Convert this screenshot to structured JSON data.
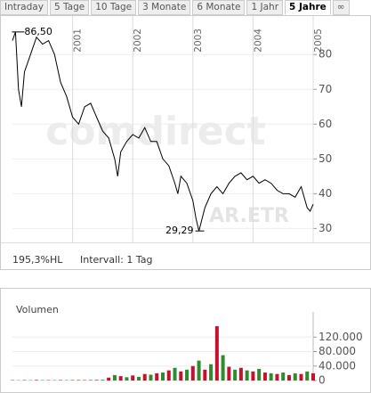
{
  "tabs": [
    "Intraday",
    "5 Tage",
    "10 Tage",
    "3 Monate",
    "6 Monate",
    "1 Jahr",
    "5 Jahre",
    "∞"
  ],
  "active_tab": 6,
  "footer": [
    "195,3%HL",
    "Intervall: 1 Tag"
  ],
  "chart_data": [
    {
      "type": "line",
      "watermark": "comdirect",
      "symbol": "AR.ETR",
      "x": [
        2000.0,
        2000.05,
        2000.1,
        2000.15,
        2000.2,
        2000.3,
        2000.4,
        2000.5,
        2000.6,
        2000.7,
        2000.8,
        2000.9,
        2001.0,
        2001.1,
        2001.2,
        2001.3,
        2001.4,
        2001.5,
        2001.6,
        2001.7,
        2001.75,
        2001.8,
        2001.9,
        2002.0,
        2002.1,
        2002.2,
        2002.3,
        2002.4,
        2002.5,
        2002.6,
        2002.7,
        2002.75,
        2002.8,
        2002.9,
        2003.0,
        2003.05,
        2003.1,
        2003.2,
        2003.3,
        2003.4,
        2003.5,
        2003.6,
        2003.7,
        2003.8,
        2003.9,
        2004.0,
        2004.1,
        2004.2,
        2004.3,
        2004.4,
        2004.5,
        2004.6,
        2004.7,
        2004.8,
        2004.9,
        2004.95,
        2005.0
      ],
      "series": [
        {
          "color": "#000000",
          "values": [
            84,
            86.5,
            70,
            65,
            75,
            80,
            85,
            83,
            84,
            80,
            72,
            68,
            62,
            60,
            65,
            66,
            62,
            58,
            56,
            50,
            45,
            52,
            55,
            57,
            56,
            59,
            55,
            55,
            50,
            48,
            43,
            40,
            45,
            43,
            38,
            33,
            29.29,
            36,
            40,
            42,
            40,
            43,
            45,
            46,
            44,
            45,
            43,
            44,
            43,
            41,
            40,
            40,
            39,
            42,
            36,
            35,
            37
          ]
        }
      ],
      "annotations": [
        {
          "x": 2000.05,
          "value": 86.5,
          "label": "86,50"
        },
        {
          "x": 2003.1,
          "value": 29.29,
          "label": "29,29"
        }
      ],
      "xlim": [
        2000,
        2005
      ],
      "xticks": [
        2001,
        2002,
        2003,
        2004,
        2005
      ],
      "ylim": [
        26,
        88
      ],
      "yticks": [
        30,
        40,
        50,
        60,
        70,
        80
      ],
      "grid": true
    },
    {
      "type": "bar",
      "title": "Volumen",
      "x": [
        2000.0,
        2000.1,
        2000.2,
        2000.3,
        2000.4,
        2000.5,
        2000.6,
        2000.7,
        2000.8,
        2000.9,
        2001.0,
        2001.1,
        2001.2,
        2001.3,
        2001.4,
        2001.5,
        2001.6,
        2001.7,
        2001.8,
        2001.9,
        2002.0,
        2002.1,
        2002.2,
        2002.3,
        2002.4,
        2002.5,
        2002.6,
        2002.7,
        2002.8,
        2002.9,
        2003.0,
        2003.1,
        2003.2,
        2003.3,
        2003.4,
        2003.5,
        2003.6,
        2003.7,
        2003.8,
        2003.9,
        2004.0,
        2004.1,
        2004.2,
        2004.3,
        2004.4,
        2004.5,
        2004.6,
        2004.7,
        2004.8,
        2004.9,
        2005.0
      ],
      "values": [
        1000,
        800,
        1200,
        900,
        1500,
        1000,
        1100,
        900,
        1300,
        1000,
        1200,
        1500,
        1100,
        1400,
        1600,
        2000,
        8000,
        15000,
        12000,
        9000,
        14000,
        10000,
        18000,
        16000,
        20000,
        22000,
        28000,
        35000,
        25000,
        30000,
        40000,
        55000,
        30000,
        45000,
        150000,
        70000,
        38000,
        30000,
        35000,
        28000,
        25000,
        32000,
        22000,
        20000,
        18000,
        22000,
        15000,
        20000,
        18000,
        25000,
        20000
      ],
      "colors": [
        "#c8102e",
        "#2e8b2e"
      ],
      "xlim": [
        2000,
        2005
      ],
      "ylim": [
        0,
        160000
      ],
      "yticks": [
        0,
        {
          "value": 40000,
          "label": "40.000"
        },
        {
          "value": 80000,
          "label": "80.000"
        },
        {
          "value": 120000,
          "label": "120.000"
        }
      ],
      "grid": true
    }
  ]
}
